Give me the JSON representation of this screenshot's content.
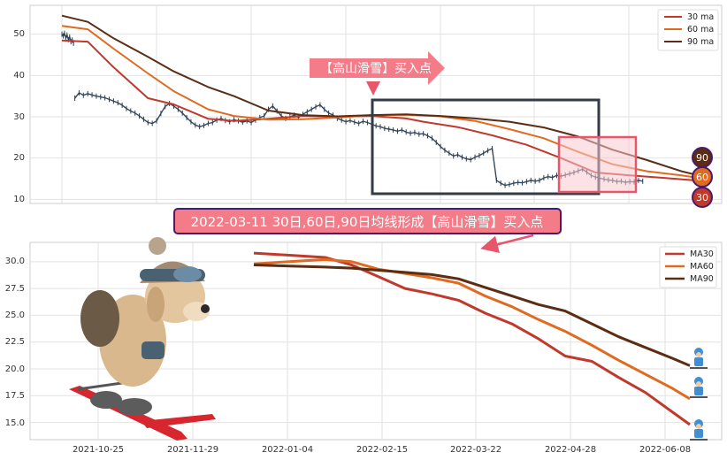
{
  "colors": {
    "ma30": "#c0392b",
    "ma60": "#e06a1f",
    "ma90": "#5a2d14",
    "banner_fill": "#f47c88",
    "banner_border": "#4a1a6b",
    "box_dark": "#333b44",
    "box_pink": "#e8566a"
  },
  "icons": [
    "skiing-dog-illustration",
    "skier-character-icon"
  ],
  "top_chart": {
    "type": "line",
    "yticks": [
      "50",
      "40",
      "30",
      "20",
      "10"
    ],
    "ylim": [
      9,
      57
    ],
    "grid": true,
    "legend_position": "top-right",
    "legend": [
      "30 ma",
      "60 ma",
      "90 ma"
    ],
    "annotation": "【高山滑雪】买入点",
    "badges": [
      "90",
      "60",
      "30"
    ],
    "price_segments": [
      {
        "x": [
          0,
          1.5,
          3,
          4.5,
          6,
          7.5,
          9,
          10.5,
          12,
          13.5
        ],
        "y": [
          50,
          49.6,
          50.2,
          49.1,
          49.8,
          48.7,
          49.3,
          48.2,
          48.6,
          47.8
        ]
      },
      {
        "x": [
          15,
          20,
          25,
          30,
          35,
          40,
          45,
          50,
          55,
          60,
          65,
          70,
          75,
          80,
          85,
          90,
          95,
          100,
          105,
          110,
          115,
          120,
          125,
          130,
          135,
          140,
          145,
          150,
          155,
          160,
          165,
          170,
          175,
          180,
          185,
          190,
          195,
          200,
          205,
          210,
          215,
          220,
          225,
          230,
          235,
          240,
          245,
          250,
          255,
          260,
          265,
          270,
          275,
          280,
          285,
          290,
          295,
          300,
          305,
          310,
          315,
          320,
          325,
          330,
          335,
          340,
          345,
          350,
          355,
          360,
          365,
          370,
          375,
          380,
          385,
          390,
          395,
          400,
          405,
          410,
          415,
          420,
          425,
          430,
          435,
          440,
          445,
          450,
          455,
          460,
          465,
          470,
          475,
          480,
          485,
          490,
          495,
          500,
          505,
          510,
          515,
          520,
          525,
          530,
          535,
          540,
          545,
          550,
          555,
          560,
          565,
          570,
          575,
          580,
          585,
          590,
          595,
          600,
          605,
          610,
          615,
          620,
          625,
          630,
          635,
          640,
          645,
          650,
          655,
          660,
          665,
          670,
          675
        ],
        "y": [
          34.5,
          35.8,
          35.2,
          35.6,
          35.3,
          35.0,
          34.8,
          34.6,
          34.2,
          33.8,
          33.4,
          32.8,
          32.0,
          31.4,
          30.9,
          30.2,
          29.4,
          28.6,
          28.4,
          29.0,
          30.8,
          32.5,
          33.2,
          32.6,
          31.8,
          30.9,
          29.8,
          28.8,
          28.0,
          27.6,
          27.9,
          28.4,
          28.6,
          29.2,
          29.6,
          29.1,
          28.8,
          29.3,
          29.0,
          28.7,
          29.0,
          28.6,
          29.2,
          29.8,
          30.2,
          31.8,
          32.6,
          31.4,
          30.2,
          29.6,
          30.0,
          30.4,
          29.8,
          30.6,
          31.2,
          31.8,
          32.4,
          32.9,
          31.8,
          30.9,
          30.4,
          29.6,
          29.2,
          28.8,
          29.1,
          28.7,
          28.4,
          28.9,
          28.6,
          28.2,
          27.8,
          27.6,
          27.2,
          27.0,
          26.8,
          26.5,
          26.8,
          26.3,
          26.0,
          26.2,
          25.8,
          25.9,
          25.4,
          24.8,
          23.8,
          22.8,
          21.9,
          21.2,
          20.5,
          20.8,
          20.2,
          19.8,
          19.6,
          20.2,
          20.6,
          21.2,
          21.8,
          22.3,
          14.6,
          13.9,
          13.4,
          13.6,
          13.9,
          14.1,
          14.0,
          14.3,
          14.6,
          14.4,
          14.6,
          15.2,
          15.5,
          15.3,
          15.8,
          15.6,
          15.9,
          16.2,
          16.5,
          16.9,
          17.3,
          16.6,
          15.8,
          15.4,
          15.1,
          14.9,
          14.7,
          14.6,
          14.3,
          14.4,
          14.1,
          14.3,
          14.2,
          14.6,
          14.4
        ]
      }
    ],
    "series": [
      {
        "name": "30 ma",
        "x": [
          0,
          30,
          60,
          100,
          130,
          170,
          200,
          240,
          280,
          320,
          360,
          400,
          420,
          460,
          500,
          540,
          580,
          620,
          660,
          700,
          740
        ],
        "y": [
          48.5,
          48.2,
          42.0,
          34.5,
          33.0,
          29.5,
          29.0,
          29.5,
          30.2,
          30.0,
          30.2,
          29.6,
          28.8,
          27.5,
          25.5,
          23.2,
          20.0,
          16.5,
          15.8,
          15.2,
          14.5
        ]
      },
      {
        "name": "60 ma",
        "x": [
          0,
          30,
          60,
          100,
          130,
          170,
          200,
          240,
          280,
          320,
          360,
          400,
          440,
          480,
          520,
          560,
          600,
          640,
          680,
          720,
          740
        ],
        "y": [
          52.0,
          51.2,
          46.5,
          40.5,
          36.2,
          31.8,
          30.2,
          29.3,
          29.4,
          29.8,
          30.4,
          30.5,
          30.1,
          29.0,
          27.0,
          24.8,
          21.5,
          18.5,
          16.8,
          15.8,
          15.2
        ]
      },
      {
        "name": "90 ma",
        "x": [
          0,
          30,
          60,
          100,
          130,
          170,
          200,
          240,
          280,
          320,
          360,
          400,
          440,
          480,
          520,
          560,
          600,
          640,
          680,
          720,
          740
        ],
        "y": [
          54.5,
          53.0,
          49.0,
          44.5,
          41.0,
          37.2,
          35.0,
          31.5,
          30.4,
          30.1,
          30.4,
          30.6,
          30.2,
          29.6,
          28.8,
          27.4,
          25.2,
          22.0,
          19.5,
          16.8,
          15.8
        ]
      }
    ]
  },
  "bottom_chart": {
    "type": "line",
    "title": "2022-03-11 30日,60日,90日均线形成【高山滑雪】买入点",
    "xticks": [
      "2021-10-25",
      "2021-11-29",
      "2022-01-04",
      "2022-02-15",
      "2022-03-22",
      "2022-04-28",
      "2022-06-08"
    ],
    "yticks": [
      "30.0",
      "27.5",
      "25.0",
      "22.5",
      "20.0",
      "17.5",
      "15.0"
    ],
    "ylim": [
      13.4,
      31.8
    ],
    "grid": true,
    "legend_position": "top-right",
    "legend": [
      "MA30",
      "MA60",
      "MA90"
    ],
    "series": [
      {
        "name": "MA30",
        "x": [
          0,
          40,
          80,
          110,
          140,
          170,
          200,
          230,
          260,
          290,
          320,
          350,
          380,
          410,
          440,
          470,
          490
        ],
        "y": [
          30.8,
          30.6,
          30.4,
          29.7,
          28.6,
          27.5,
          27.0,
          26.4,
          25.2,
          24.2,
          22.8,
          21.2,
          20.7,
          19.2,
          17.8,
          16.0,
          14.8
        ]
      },
      {
        "name": "MA60",
        "x": [
          0,
          40,
          80,
          110,
          140,
          170,
          200,
          230,
          260,
          290,
          320,
          350,
          380,
          410,
          440,
          470,
          490
        ],
        "y": [
          29.8,
          30.0,
          30.2,
          30.0,
          29.3,
          28.9,
          28.5,
          28.0,
          26.8,
          25.8,
          24.6,
          23.5,
          22.2,
          20.8,
          19.5,
          18.2,
          17.2
        ]
      },
      {
        "name": "MA90",
        "x": [
          0,
          40,
          80,
          110,
          140,
          170,
          200,
          230,
          260,
          290,
          320,
          350,
          380,
          410,
          440,
          470,
          490
        ],
        "y": [
          29.7,
          29.6,
          29.5,
          29.4,
          29.2,
          29.0,
          28.8,
          28.4,
          27.6,
          26.8,
          26.0,
          25.4,
          24.2,
          23.0,
          22.0,
          21.0,
          20.3
        ]
      }
    ]
  }
}
